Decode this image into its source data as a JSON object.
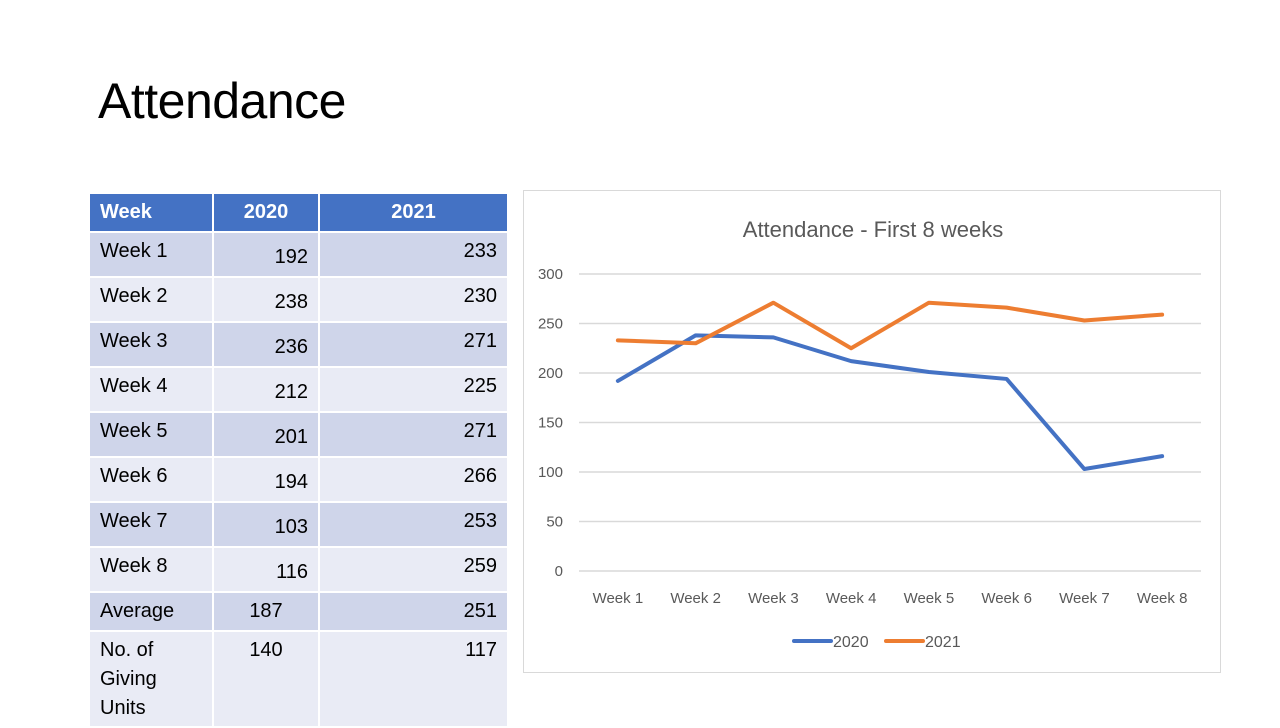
{
  "slide": {
    "title": "Attendance"
  },
  "table": {
    "headers": [
      "Week",
      "2020",
      "2021"
    ],
    "rows": [
      [
        "Week 1",
        "192",
        "233"
      ],
      [
        "Week 2",
        "238",
        "230"
      ],
      [
        "Week 3",
        "236",
        "271"
      ],
      [
        "Week 4",
        "212",
        "225"
      ],
      [
        "Week 5",
        "201",
        "271"
      ],
      [
        "Week 6",
        "194",
        "266"
      ],
      [
        "Week 7",
        "103",
        "253"
      ],
      [
        "Week 8",
        "116",
        "259"
      ],
      [
        "Average",
        "187",
        "251"
      ],
      [
        "No. of Giving Units",
        "140",
        "117"
      ]
    ]
  },
  "chart_data": {
    "type": "line",
    "title": "Attendance - First 8 weeks",
    "categories": [
      "Week 1",
      "Week 2",
      "Week 3",
      "Week 4",
      "Week 5",
      "Week 6",
      "Week 7",
      "Week 8"
    ],
    "series": [
      {
        "name": "2020",
        "color": "#4472C4",
        "values": [
          192,
          238,
          236,
          212,
          201,
          194,
          103,
          116
        ]
      },
      {
        "name": "2021",
        "color": "#ED7D31",
        "values": [
          233,
          230,
          271,
          225,
          271,
          266,
          253,
          259
        ]
      }
    ],
    "ylim": [
      0,
      300
    ],
    "yticks": [
      "0",
      "50",
      "100",
      "150",
      "200",
      "250",
      "300"
    ],
    "xlabel": "",
    "ylabel": "",
    "grid": true,
    "legend": "bottom"
  }
}
